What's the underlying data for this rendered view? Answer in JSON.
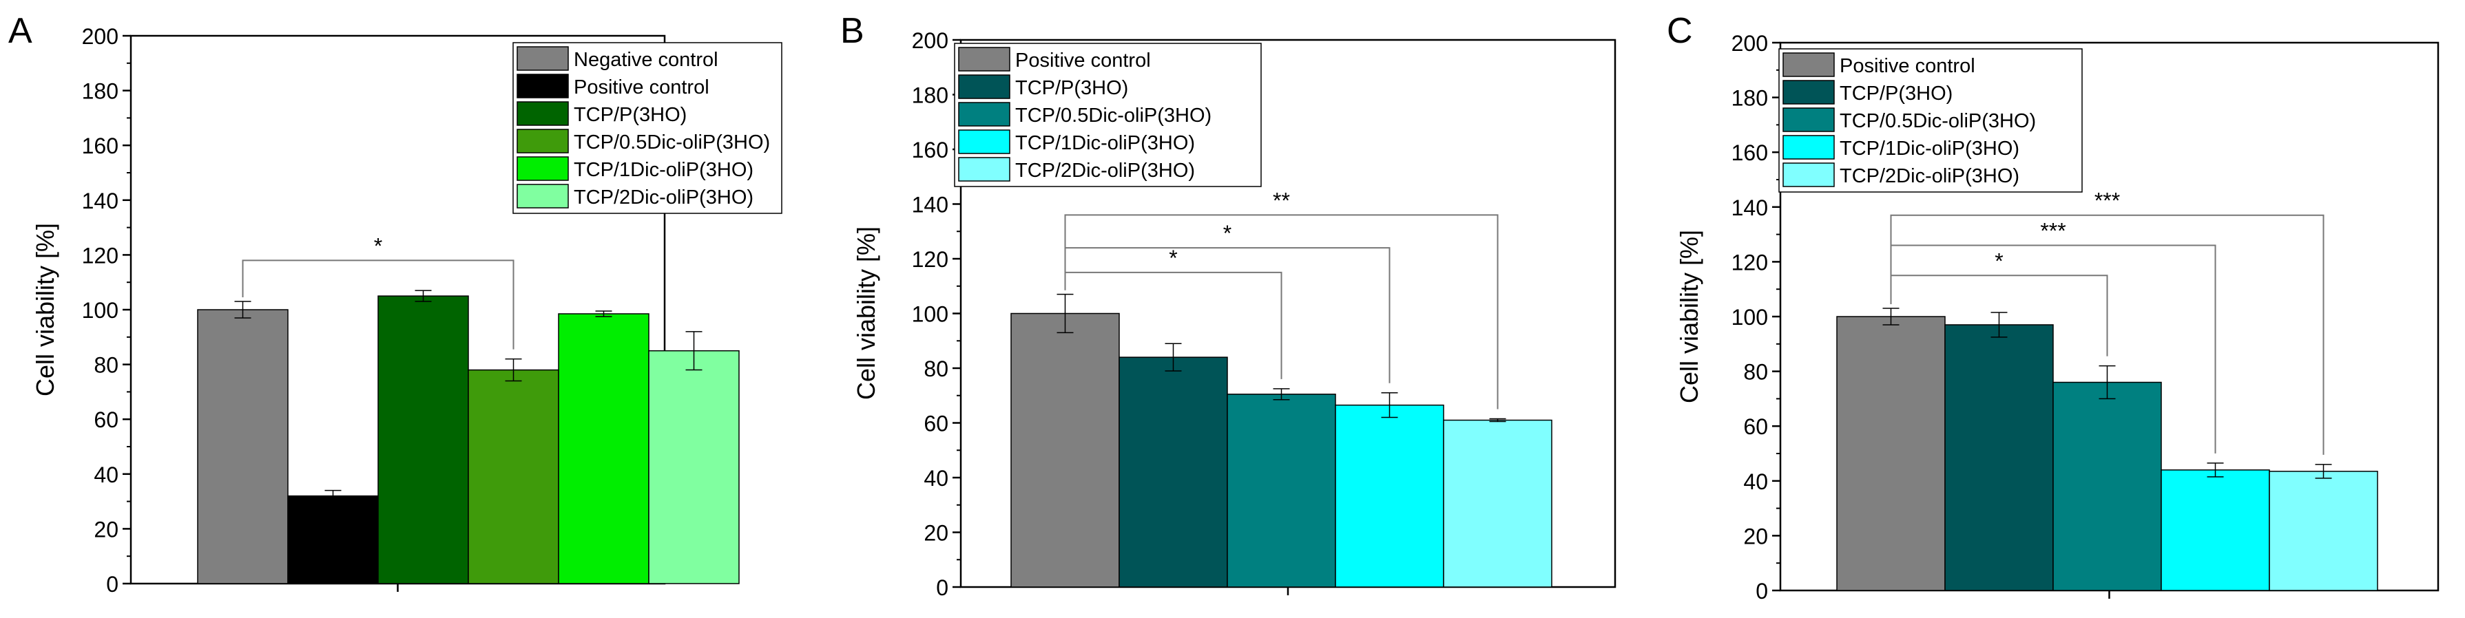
{
  "figure": {
    "panels": [
      "A",
      "B",
      "C"
    ]
  },
  "chart_data": [
    {
      "panel": "A",
      "type": "bar",
      "title": "",
      "xlabel": "",
      "ylabel": "Cell viability [%]",
      "ylim": [
        0,
        200
      ],
      "yticks": [
        0,
        20,
        40,
        60,
        80,
        100,
        120,
        140,
        160,
        180,
        200
      ],
      "series": [
        {
          "name": "Negative control",
          "value": 100,
          "error": 3,
          "color": "#808080"
        },
        {
          "name": "Positive control",
          "value": 32,
          "error": 2,
          "color": "#000000"
        },
        {
          "name": "TCP/P(3HO)",
          "value": 105,
          "error": 2,
          "color": "#006400"
        },
        {
          "name": "TCP/0.5Dic-oliP(3HO)",
          "value": 78,
          "error": 4,
          "color": "#3f9b0b"
        },
        {
          "name": "TCP/1Dic-oliP(3HO)",
          "value": 98.5,
          "error": 1,
          "color": "#00ee00"
        },
        {
          "name": "TCP/2Dic-oliP(3HO)",
          "value": 85,
          "error": 7,
          "color": "#80ffa0"
        }
      ],
      "significance": [
        {
          "from": 0,
          "to": 3,
          "label": "*",
          "level": 118
        }
      ],
      "legend_position": "top-right"
    },
    {
      "panel": "B",
      "type": "bar",
      "title": "",
      "xlabel": "",
      "ylabel": "Cell viability [%]",
      "ylim": [
        0,
        200
      ],
      "yticks": [
        0,
        20,
        40,
        60,
        80,
        100,
        120,
        140,
        160,
        180,
        200
      ],
      "series": [
        {
          "name": "Positive control",
          "value": 100,
          "error": 7,
          "color": "#808080"
        },
        {
          "name": "TCP/P(3HO)",
          "value": 84,
          "error": 5,
          "color": "#005457"
        },
        {
          "name": "TCP/0.5Dic-oliP(3HO)",
          "value": 70.5,
          "error": 2,
          "color": "#008080"
        },
        {
          "name": "TCP/1Dic-oliP(3HO)",
          "value": 66.5,
          "error": 4.5,
          "color": "#00ffff"
        },
        {
          "name": "TCP/2Dic-oliP(3HO)",
          "value": 61,
          "error": 0.5,
          "color": "#80ffff"
        }
      ],
      "significance": [
        {
          "from": 0,
          "to": 2,
          "label": "*",
          "level": 115
        },
        {
          "from": 0,
          "to": 3,
          "label": "*",
          "level": 124
        },
        {
          "from": 0,
          "to": 4,
          "label": "**",
          "level": 136
        }
      ],
      "legend_position": "top-left"
    },
    {
      "panel": "C",
      "type": "bar",
      "title": "",
      "xlabel": "",
      "ylabel": "Cell viability [%]",
      "ylim": [
        0,
        200
      ],
      "yticks": [
        0,
        20,
        40,
        60,
        80,
        100,
        120,
        140,
        160,
        180,
        200
      ],
      "series": [
        {
          "name": "Positive control",
          "value": 100,
          "error": 3,
          "color": "#808080"
        },
        {
          "name": "TCP/P(3HO)",
          "value": 97,
          "error": 4.5,
          "color": "#005457"
        },
        {
          "name": "TCP/0.5Dic-oliP(3HO)",
          "value": 76,
          "error": 6,
          "color": "#008080"
        },
        {
          "name": "TCP/1Dic-oliP(3HO)",
          "value": 44,
          "error": 2.5,
          "color": "#00ffff"
        },
        {
          "name": "TCP/2Dic-oliP(3HO)",
          "value": 43.5,
          "error": 2.5,
          "color": "#80ffff"
        }
      ],
      "significance": [
        {
          "from": 0,
          "to": 2,
          "label": "*",
          "level": 115
        },
        {
          "from": 0,
          "to": 3,
          "label": "***",
          "level": 126
        },
        {
          "from": 0,
          "to": 4,
          "label": "***",
          "level": 137
        }
      ],
      "legend_position": "top-left"
    }
  ]
}
